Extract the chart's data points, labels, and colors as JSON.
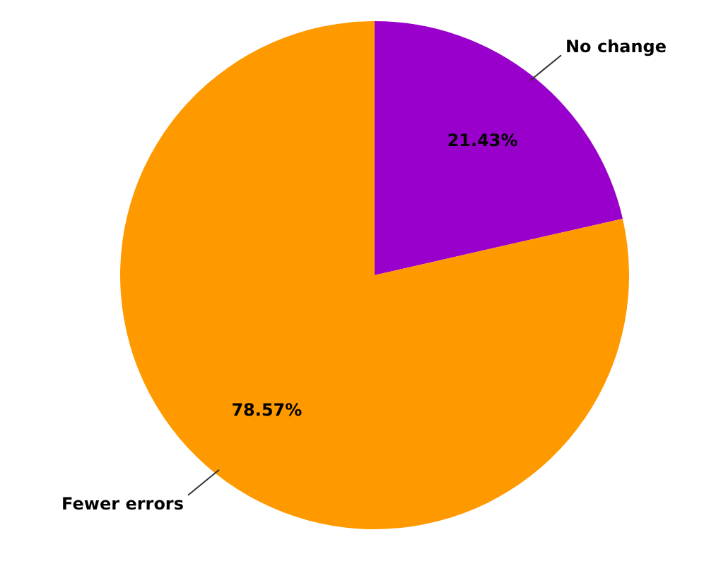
{
  "chart_data": {
    "type": "pie",
    "categories": [
      "No change",
      "Fewer errors"
    ],
    "values": [
      21.43,
      78.57
    ],
    "colors": [
      "#9900cc",
      "#ff9900"
    ],
    "value_labels": [
      "21.43%",
      "78.57%"
    ]
  }
}
